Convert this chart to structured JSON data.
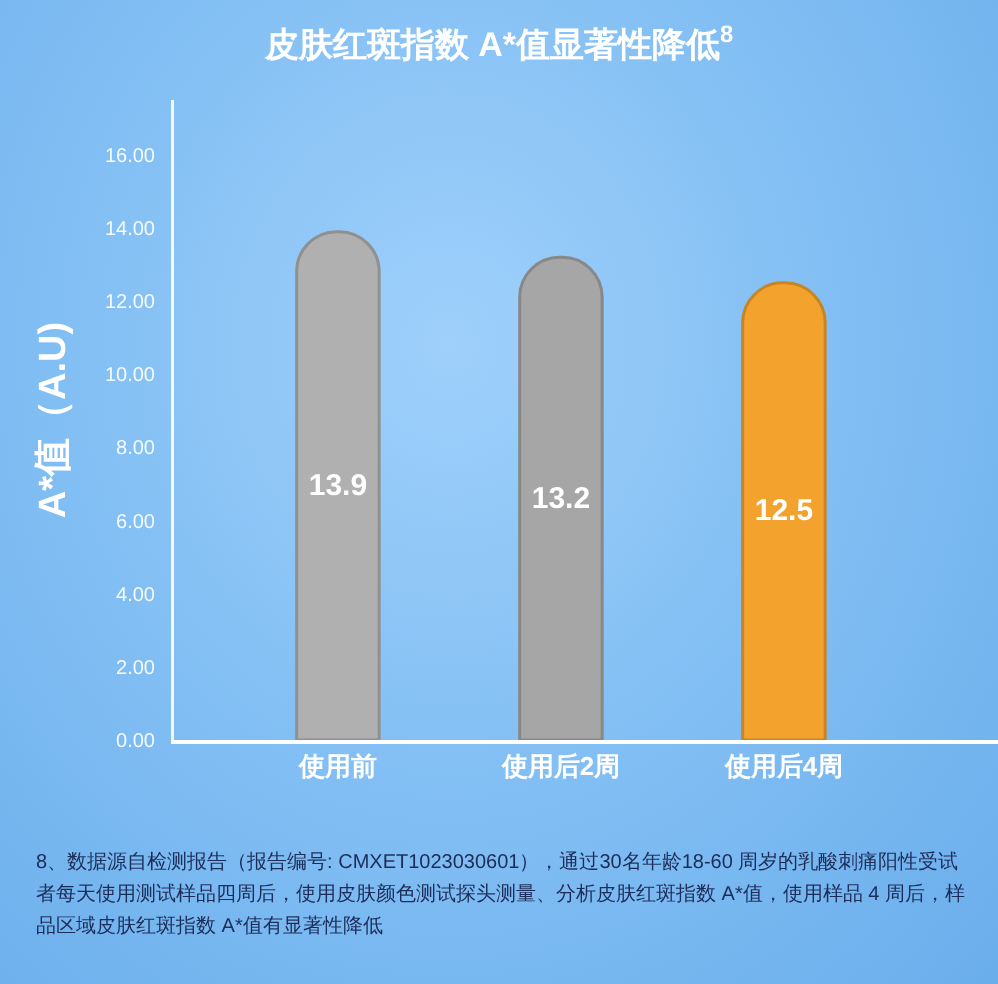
{
  "chart_data": {
    "type": "bar",
    "title": "皮肤红斑指数 A*值显著性降低$^{8}$",
    "ylabel": "A*值（A.U)",
    "categories": [
      "使用前",
      "使用后2周",
      "使用后4周"
    ],
    "values": [
      13.9,
      13.2,
      12.5
    ],
    "colors": [
      "#b0b0b0",
      "#a6a6a6",
      "#f4a22e"
    ],
    "data_labels": true,
    "ylim": [
      0,
      17.5
    ],
    "yticks": [
      {
        "value": 0,
        "label": "0.00"
      },
      {
        "value": 2,
        "label": "2.00"
      },
      {
        "value": 4,
        "label": "4.00"
      },
      {
        "value": 6,
        "label": "6.00"
      },
      {
        "value": 8,
        "label": "8.00"
      },
      {
        "value": 10,
        "label": "10.00"
      },
      {
        "value": 12,
        "label": "12.00"
      },
      {
        "value": 14,
        "label": "14.00"
      },
      {
        "value": 16,
        "label": "16.00"
      }
    ],
    "annotations": [
      "8、数据源自检测报告（报告编号: CMXET1023030601），通过30名年龄18-60 周岁的乳酸刺痛阳性受试者每天使用测试样品四周后，使用皮肤颜色测试探头测量、分析皮肤红斑指数 A*值，使用样品 4 周后，样品区域皮肤红斑指数 A*值有显著性降低"
    ]
  }
}
